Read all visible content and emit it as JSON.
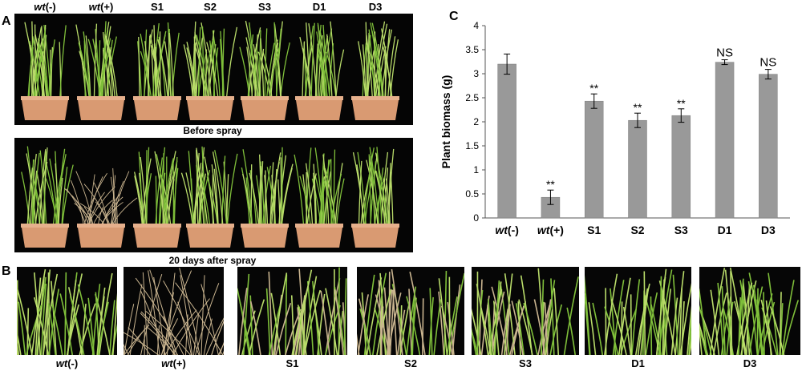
{
  "panels": {
    "a_letter": "A",
    "b_letter": "B",
    "c_letter": "C"
  },
  "panel_a": {
    "columns": [
      {
        "italic": "wt",
        "rest": "(-)"
      },
      {
        "italic": "wt",
        "rest": "(+)"
      },
      {
        "italic": "",
        "rest": "S1"
      },
      {
        "italic": "",
        "rest": "S2"
      },
      {
        "italic": "",
        "rest": "S3"
      },
      {
        "italic": "",
        "rest": "D1"
      },
      {
        "italic": "",
        "rest": "D3"
      }
    ],
    "caption_top": "Before spray",
    "caption_bottom": "20 days after spray"
  },
  "panel_b": {
    "labels": [
      {
        "italic": "wt",
        "rest": "(-)"
      },
      {
        "italic": "wt",
        "rest": "(+)"
      },
      {
        "italic": "",
        "rest": "S1"
      },
      {
        "italic": "",
        "rest": "S2"
      },
      {
        "italic": "",
        "rest": "S3"
      },
      {
        "italic": "",
        "rest": "D1"
      },
      {
        "italic": "",
        "rest": "D3"
      }
    ]
  },
  "colors": {
    "bar": "#999999",
    "bar_edge": "#7f7f7f",
    "pot": "#d99a72",
    "pot_rim": "#e6b08c",
    "leaf_green": "#7fbf3a",
    "leaf_light": "#b9dc6a",
    "dead_straw": "#c9b48f",
    "photo_bg": "#050505"
  },
  "chart_data": {
    "type": "bar",
    "categories": [
      "wt(-)",
      "wt(+)",
      "S1",
      "S2",
      "S3",
      "D1",
      "D3"
    ],
    "categories_italic_prefix": [
      "wt",
      "wt",
      "",
      "",
      "",
      "",
      ""
    ],
    "values": [
      3.2,
      0.43,
      2.43,
      2.03,
      2.13,
      3.24,
      2.99
    ],
    "errors": [
      0.21,
      0.15,
      0.15,
      0.15,
      0.14,
      0.05,
      0.1
    ],
    "annotations": [
      "",
      "**",
      "**",
      "**",
      "**",
      "NS",
      "NS"
    ],
    "ylabel": "Plant biomass (g)",
    "xlabel": "",
    "title": "",
    "ylim": [
      0,
      4
    ],
    "yticks": [
      "0",
      "0.5",
      "1",
      "1.5",
      "2",
      "2.5",
      "3",
      "3.5",
      "4"
    ],
    "grid": false
  }
}
